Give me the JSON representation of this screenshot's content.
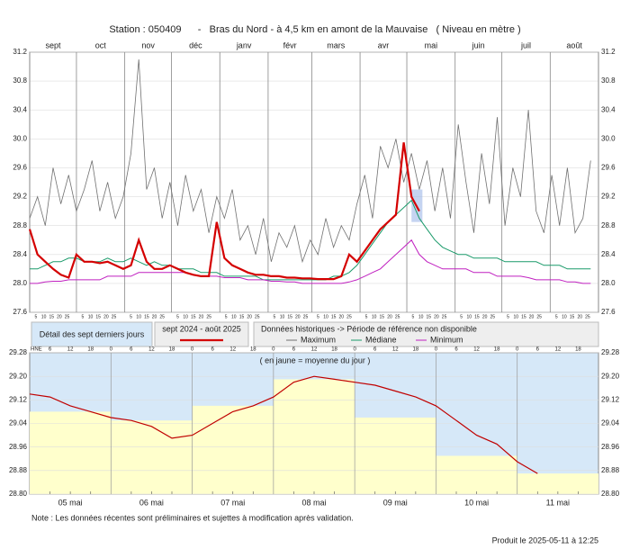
{
  "chart_data": [
    {
      "type": "line",
      "title": "Station : 050409      -   Bras du Nord - à 4,5 km en amont de la Mauvaise   ( Niveau en mètre )",
      "categories": [
        "sept",
        "oct",
        "nov",
        "déc",
        "janv",
        "févr",
        "mars",
        "avr",
        "mai",
        "juin",
        "juil",
        "août"
      ],
      "xlim": [
        0,
        365
      ],
      "xticks": [
        0,
        30,
        61,
        91,
        122,
        153,
        181,
        212,
        242,
        273,
        303,
        334,
        365
      ],
      "day_tick_labels": [
        "5",
        "10",
        "15",
        "20",
        "25"
      ],
      "ylim": [
        27.6,
        31.2
      ],
      "yticks": [
        {
          "value": 27.6,
          "label": "27.6"
        },
        {
          "value": 28,
          "label": "28.0"
        },
        {
          "value": 28.4,
          "label": "28.4"
        },
        {
          "value": 28.8,
          "label": "28.8"
        },
        {
          "value": 29.2,
          "label": "29.2"
        },
        {
          "value": 29.6,
          "label": "29.6"
        },
        {
          "value": 30,
          "label": "30.0"
        },
        {
          "value": 30.4,
          "label": "30.4"
        },
        {
          "value": 30.8,
          "label": "30.8"
        },
        {
          "value": 31.2,
          "label": "31.2"
        }
      ],
      "grid": true,
      "legend_title": "Données historiques -> Période de référence non disponible",
      "x": [
        0,
        5,
        10,
        15,
        20,
        25,
        30,
        35,
        40,
        45,
        50,
        55,
        60,
        65,
        70,
        75,
        80,
        85,
        90,
        95,
        100,
        105,
        110,
        115,
        120,
        125,
        130,
        135,
        140,
        145,
        150,
        155,
        160,
        165,
        170,
        175,
        180,
        185,
        190,
        195,
        200,
        205,
        210,
        215,
        220,
        225,
        230,
        235,
        240,
        245,
        250,
        255,
        260,
        265,
        270,
        275,
        280,
        285,
        290,
        295,
        300,
        305,
        310,
        315,
        320,
        325,
        330,
        335,
        340,
        345,
        350,
        355,
        360
      ],
      "series": [
        {
          "name": "Maximum",
          "color": "#707070",
          "width": 0.8,
          "values": [
            28.9,
            29.2,
            28.8,
            29.6,
            29.1,
            29.5,
            29.0,
            29.3,
            29.7,
            29.0,
            29.4,
            28.9,
            29.2,
            29.8,
            31.1,
            29.3,
            29.6,
            28.9,
            29.4,
            28.8,
            29.5,
            29.0,
            29.3,
            28.7,
            29.2,
            28.9,
            29.3,
            28.6,
            28.8,
            28.4,
            28.9,
            28.3,
            28.7,
            28.5,
            28.8,
            28.3,
            28.6,
            28.4,
            28.9,
            28.5,
            28.8,
            28.6,
            29.1,
            29.5,
            28.9,
            29.9,
            29.6,
            30.0,
            29.4,
            29.8,
            29.3,
            29.7,
            29.0,
            29.6,
            28.9,
            30.2,
            29.4,
            28.7,
            29.8,
            29.1,
            30.3,
            28.8,
            29.6,
            29.2,
            30.4,
            29.0,
            28.7,
            29.5,
            28.8,
            29.6,
            28.7,
            28.9,
            29.7
          ]
        },
        {
          "name": "Médiane",
          "color": "#1a9a6a",
          "width": 1,
          "values": [
            28.2,
            28.2,
            28.25,
            28.3,
            28.3,
            28.35,
            28.35,
            28.3,
            28.3,
            28.3,
            28.35,
            28.3,
            28.3,
            28.35,
            28.3,
            28.25,
            28.3,
            28.25,
            28.25,
            28.2,
            28.2,
            28.2,
            28.15,
            28.15,
            28.15,
            28.1,
            28.1,
            28.1,
            28.1,
            28.1,
            28.05,
            28.05,
            28.05,
            28.05,
            28.05,
            28.05,
            28.05,
            28.05,
            28.05,
            28.1,
            28.1,
            28.15,
            28.25,
            28.4,
            28.55,
            28.7,
            28.85,
            28.95,
            29.05,
            29.15,
            28.9,
            28.75,
            28.6,
            28.5,
            28.45,
            28.4,
            28.4,
            28.35,
            28.35,
            28.35,
            28.35,
            28.3,
            28.3,
            28.3,
            28.3,
            28.3,
            28.25,
            28.25,
            28.25,
            28.2,
            28.2,
            28.2,
            28.2
          ]
        },
        {
          "name": "Minimum",
          "color": "#c020c0",
          "width": 1,
          "values": [
            28.0,
            28.0,
            28.02,
            28.03,
            28.03,
            28.05,
            28.05,
            28.05,
            28.05,
            28.05,
            28.1,
            28.1,
            28.1,
            28.1,
            28.15,
            28.15,
            28.15,
            28.15,
            28.15,
            28.15,
            28.15,
            28.12,
            28.1,
            28.1,
            28.1,
            28.08,
            28.08,
            28.08,
            28.05,
            28.05,
            28.05,
            28.03,
            28.03,
            28.02,
            28.02,
            28.0,
            28.0,
            28.0,
            28.0,
            28.0,
            28.0,
            28.02,
            28.05,
            28.1,
            28.15,
            28.2,
            28.3,
            28.4,
            28.5,
            28.6,
            28.4,
            28.3,
            28.25,
            28.2,
            28.2,
            28.2,
            28.2,
            28.15,
            28.15,
            28.15,
            28.1,
            28.1,
            28.1,
            28.1,
            28.08,
            28.05,
            28.05,
            28.05,
            28.05,
            28.02,
            28.02,
            28.0,
            28.0
          ]
        },
        {
          "name": "sept 2024 - août 2025",
          "color": "#d40000",
          "width": 2.2,
          "values": [
            28.75,
            28.4,
            28.3,
            28.2,
            28.12,
            28.08,
            28.4,
            28.3,
            28.3,
            28.28,
            28.3,
            28.25,
            28.2,
            28.25,
            28.6,
            28.3,
            28.2,
            28.2,
            28.25,
            28.2,
            28.15,
            28.12,
            28.1,
            28.1,
            28.85,
            28.35,
            28.25,
            28.2,
            28.15,
            28.12,
            28.12,
            28.1,
            28.1,
            28.08,
            28.08,
            28.07,
            28.07,
            28.06,
            28.06,
            28.06,
            28.1,
            28.4,
            28.3,
            28.45,
            28.6,
            28.75,
            28.85,
            28.95,
            29.95,
            29.2,
            29.0,
            null,
            null,
            null,
            null,
            null,
            null,
            null,
            null,
            null,
            null,
            null,
            null,
            null,
            null,
            null,
            null,
            null,
            null,
            null,
            null,
            null,
            null
          ]
        }
      ]
    },
    {
      "type": "line",
      "title": "Détail des sept derniers jours",
      "annotation": "( en jaune = moyenne du jour )",
      "hour_axis_label": "HNE",
      "categories": [
        "05 mai",
        "06 mai",
        "07 mai",
        "08 mai",
        "09 mai",
        "10 mai",
        "11 mai"
      ],
      "xlim": [
        0,
        168
      ],
      "xticks": [
        6,
        12,
        18,
        {
          "value": 24,
          "label": "0"
        },
        {
          "value": 30,
          "label": "6"
        },
        {
          "value": 36,
          "label": "12"
        },
        {
          "value": 42,
          "label": "18"
        },
        {
          "value": 48,
          "label": "0"
        },
        {
          "value": 54,
          "label": "6"
        },
        {
          "value": 60,
          "label": "12"
        },
        {
          "value": 66,
          "label": "18"
        },
        {
          "value": 72,
          "label": "0"
        },
        {
          "value": 78,
          "label": "6"
        },
        {
          "value": 84,
          "label": "12"
        },
        {
          "value": 90,
          "label": "18"
        },
        {
          "value": 96,
          "label": "0"
        },
        {
          "value": 102,
          "label": "6"
        },
        {
          "value": 108,
          "label": "12"
        },
        {
          "value": 114,
          "label": "18"
        },
        {
          "value": 120,
          "label": "0"
        },
        {
          "value": 126,
          "label": "6"
        },
        {
          "value": 132,
          "label": "12"
        },
        {
          "value": 138,
          "label": "18"
        },
        {
          "value": 144,
          "label": "0"
        },
        {
          "value": 150,
          "label": "6"
        },
        {
          "value": 156,
          "label": "12"
        },
        {
          "value": 162,
          "label": "18"
        }
      ],
      "ylim": [
        28.8,
        29.28
      ],
      "yticks": [
        {
          "value": 28.8,
          "label": "28.80"
        },
        {
          "value": 28.88,
          "label": "28.88"
        },
        {
          "value": 28.96,
          "label": "28.96"
        },
        {
          "value": 29.04,
          "label": "29.04"
        },
        {
          "value": 29.12,
          "label": "29.12"
        },
        {
          "value": 29.2,
          "label": "29.20"
        },
        {
          "value": 29.28,
          "label": "29.28"
        }
      ],
      "daily_means": {
        "color": "#ffffcc",
        "values": [
          29.08,
          29.05,
          29.1,
          29.19,
          29.06,
          28.93,
          28.87
        ]
      },
      "series": [
        {
          "color": "#c00000",
          "x": [
            0,
            6,
            12,
            18,
            24,
            30,
            36,
            42,
            48,
            54,
            60,
            66,
            72,
            78,
            84,
            90,
            96,
            102,
            108,
            114,
            120,
            126,
            132,
            138,
            144,
            150
          ],
          "values": [
            29.14,
            29.13,
            29.1,
            29.08,
            29.06,
            29.05,
            29.03,
            28.99,
            29.0,
            29.04,
            29.08,
            29.1,
            29.13,
            29.18,
            29.2,
            29.19,
            29.18,
            29.17,
            29.15,
            29.13,
            29.1,
            29.05,
            29.0,
            28.97,
            28.91,
            28.87
          ]
        }
      ]
    }
  ],
  "footer": {
    "note": "Note : Les données récentes sont préliminaires et sujettes à modification après validation.",
    "produced": "Produit le 2025-05-11 à 12:25"
  }
}
